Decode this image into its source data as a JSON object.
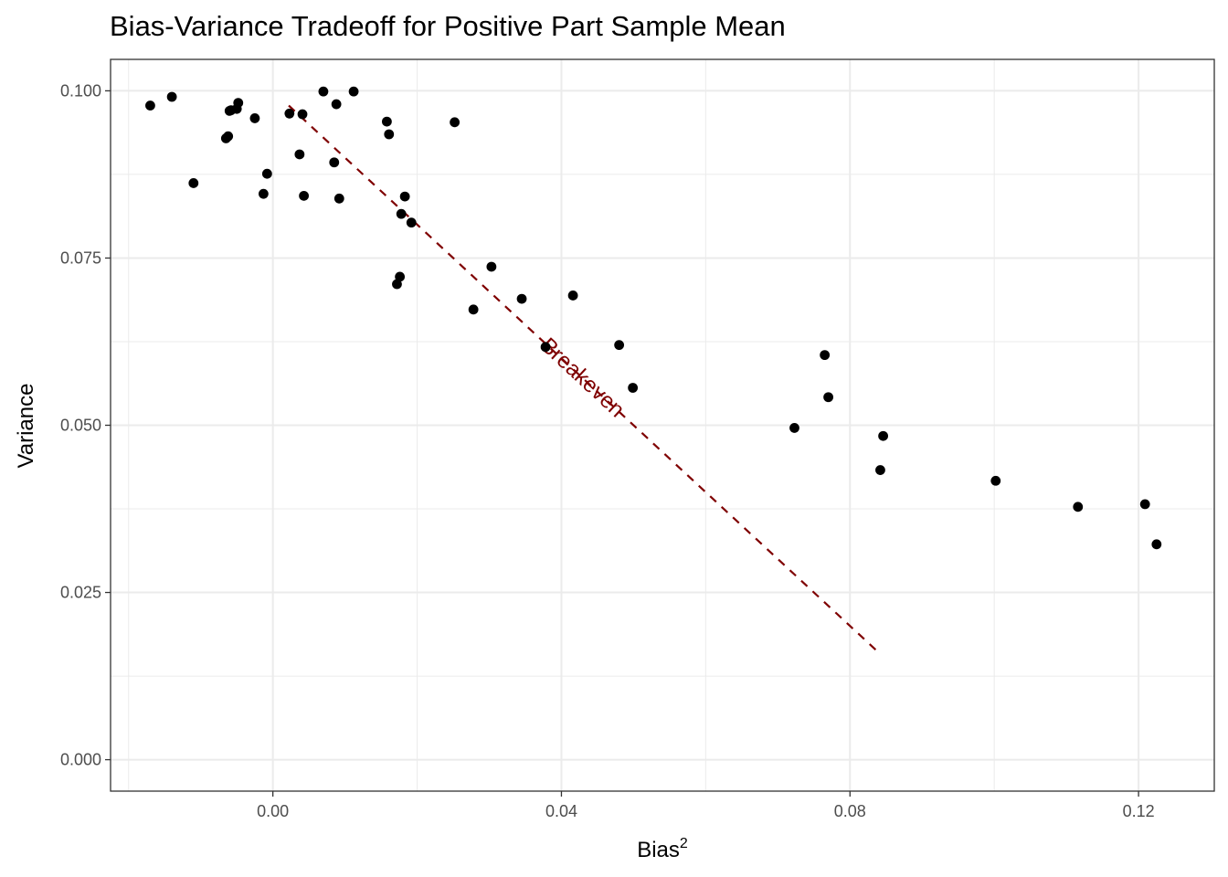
{
  "chart_data": {
    "type": "scatter",
    "title": "Bias-Variance Tradeoff for Positive Part Sample Mean",
    "xlabel": "Bias",
    "xlabel_superscript": "2",
    "ylabel": "Variance",
    "xlim": [
      -0.0225,
      0.1305
    ],
    "ylim": [
      -0.0047,
      0.1047
    ],
    "x_ticks": [
      0.0,
      0.04,
      0.08,
      0.12
    ],
    "x_tick_labels": [
      "0.00",
      "0.04",
      "0.08",
      "0.12"
    ],
    "x_minor_ticks": [
      -0.02,
      0.02,
      0.06,
      0.1
    ],
    "y_ticks": [
      0.0,
      0.025,
      0.05,
      0.075,
      0.1
    ],
    "y_tick_labels": [
      "0.000",
      "0.025",
      "0.050",
      "0.075",
      "0.100"
    ],
    "y_minor_ticks": [
      0.0125,
      0.0375,
      0.0625,
      0.0875
    ],
    "grid": true,
    "point_color": "#000000",
    "points": [
      {
        "x": -0.017,
        "y": 0.0978
      },
      {
        "x": -0.014,
        "y": 0.0991
      },
      {
        "x": -0.011,
        "y": 0.0862
      },
      {
        "x": -0.0065,
        "y": 0.0929
      },
      {
        "x": -0.0062,
        "y": 0.0932
      },
      {
        "x": -0.006,
        "y": 0.097
      },
      {
        "x": -0.0058,
        "y": 0.0971
      },
      {
        "x": -0.005,
        "y": 0.0973
      },
      {
        "x": -0.0048,
        "y": 0.0982
      },
      {
        "x": -0.0025,
        "y": 0.0959
      },
      {
        "x": -0.0013,
        "y": 0.0846
      },
      {
        "x": -0.0008,
        "y": 0.0876
      },
      {
        "x": 0.0023,
        "y": 0.0966
      },
      {
        "x": 0.0037,
        "y": 0.0905
      },
      {
        "x": 0.0041,
        "y": 0.0965
      },
      {
        "x": 0.0043,
        "y": 0.0843
      },
      {
        "x": 0.007,
        "y": 0.0999
      },
      {
        "x": 0.0085,
        "y": 0.0893
      },
      {
        "x": 0.0088,
        "y": 0.098
      },
      {
        "x": 0.0092,
        "y": 0.0839
      },
      {
        "x": 0.0112,
        "y": 0.0999
      },
      {
        "x": 0.0158,
        "y": 0.0954
      },
      {
        "x": 0.0161,
        "y": 0.0935
      },
      {
        "x": 0.0172,
        "y": 0.0711
      },
      {
        "x": 0.0176,
        "y": 0.0722
      },
      {
        "x": 0.0178,
        "y": 0.0816
      },
      {
        "x": 0.0183,
        "y": 0.0842
      },
      {
        "x": 0.0192,
        "y": 0.0803
      },
      {
        "x": 0.0252,
        "y": 0.0953
      },
      {
        "x": 0.0278,
        "y": 0.0673
      },
      {
        "x": 0.0303,
        "y": 0.0737
      },
      {
        "x": 0.0345,
        "y": 0.0689
      },
      {
        "x": 0.0378,
        "y": 0.0617
      },
      {
        "x": 0.0416,
        "y": 0.0694
      },
      {
        "x": 0.048,
        "y": 0.062
      },
      {
        "x": 0.0499,
        "y": 0.0556
      },
      {
        "x": 0.0723,
        "y": 0.0496
      },
      {
        "x": 0.0765,
        "y": 0.0605
      },
      {
        "x": 0.077,
        "y": 0.0542
      },
      {
        "x": 0.0842,
        "y": 0.0433
      },
      {
        "x": 0.0846,
        "y": 0.0484
      },
      {
        "x": 0.1002,
        "y": 0.0417
      },
      {
        "x": 0.1116,
        "y": 0.0378
      },
      {
        "x": 0.1209,
        "y": 0.0382
      },
      {
        "x": 0.1225,
        "y": 0.0322
      }
    ],
    "reference_line": {
      "label": "Breakeven",
      "style": "dashed",
      "color": "#7f0000",
      "x": [
        0.0022,
        0.084
      ],
      "y": [
        0.0978,
        0.016
      ],
      "label_at": {
        "x": 0.0429,
        "y": 0.0571
      }
    }
  }
}
